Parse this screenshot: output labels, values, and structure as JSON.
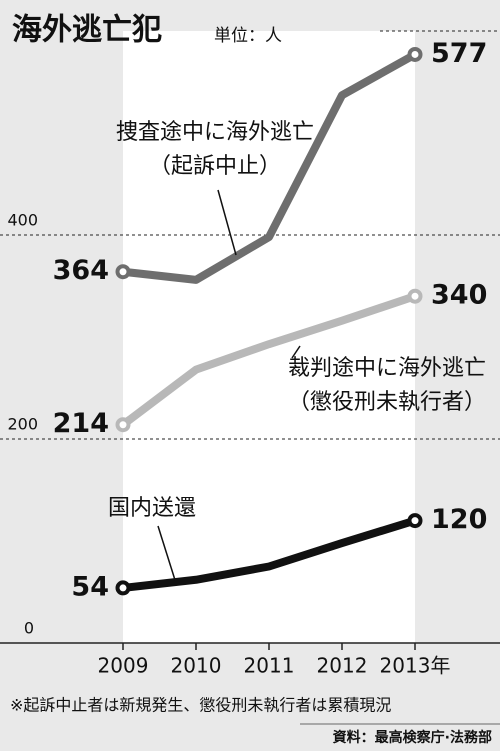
{
  "chart_data": {
    "type": "line",
    "title": "海外逃亡犯",
    "subtitle": "単位：人",
    "categories": [
      "2009",
      "2010",
      "2011",
      "2012",
      "2013年"
    ],
    "series": [
      {
        "name": "捜査途中に海外逃亡\n（起訴中止）",
        "color": "#6e6e6e",
        "values": [
          364,
          356,
          398,
          537,
          577
        ]
      },
      {
        "name": "裁判途中に海外逃亡\n（懲役刑未執行者）",
        "color": "#b8b8b8",
        "values": [
          214,
          268,
          293,
          316,
          340
        ]
      },
      {
        "name": "国内送還",
        "color": "#111111",
        "values": [
          54,
          62,
          75,
          98,
          120
        ]
      }
    ],
    "ylim": [
      0,
      600
    ],
    "yticks": [
      0,
      200,
      400
    ],
    "grid": true,
    "footnote": "※起訴中止者は新規発生、懲役刑未執行者は累積現況",
    "source": "資料：最高検察庁·法務部"
  }
}
